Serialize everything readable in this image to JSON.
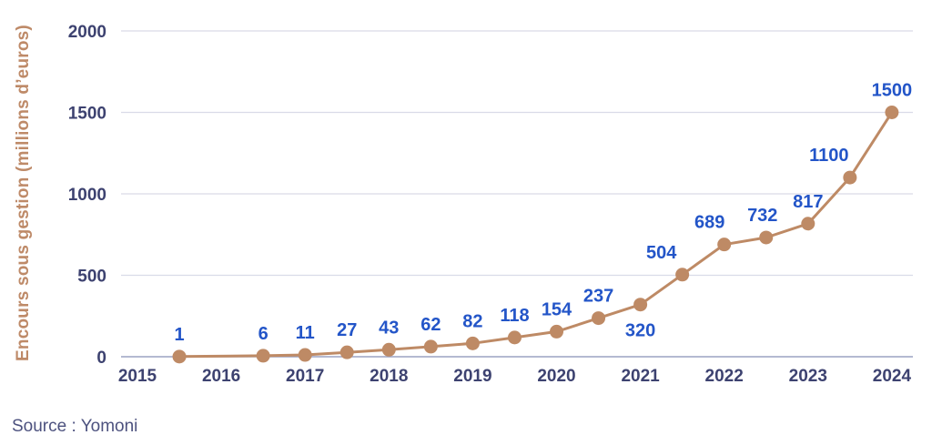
{
  "chart_data": {
    "type": "line",
    "title": "",
    "xlabel": "",
    "ylabel": "Encours sous gestion (millions d’euros)",
    "source": "Source : Yomoni",
    "x_tick_years": [
      2015,
      2016,
      2017,
      2018,
      2019,
      2020,
      2021,
      2022,
      2023,
      2024
    ],
    "x_tick_labels": [
      "2015",
      "2016",
      "2017",
      "2018",
      "2019",
      "2020",
      "2021",
      "2022",
      "2023",
      "2024"
    ],
    "y_ticks": [
      0,
      500,
      1000,
      1500,
      2000
    ],
    "ylim": [
      0,
      2000
    ],
    "xlim_years": [
      2014.8,
      2024.25
    ],
    "grid": "horizontal",
    "legend": "none",
    "series": [
      {
        "name": "Encours sous gestion",
        "points": [
          {
            "x": 2015.5,
            "y": 1
          },
          {
            "x": 2016.5,
            "y": 6
          },
          {
            "x": 2017.0,
            "y": 11
          },
          {
            "x": 2017.5,
            "y": 27
          },
          {
            "x": 2018.0,
            "y": 43
          },
          {
            "x": 2018.5,
            "y": 62
          },
          {
            "x": 2019.0,
            "y": 82
          },
          {
            "x": 2019.5,
            "y": 118
          },
          {
            "x": 2020.0,
            "y": 154
          },
          {
            "x": 2020.5,
            "y": 237
          },
          {
            "x": 2021.0,
            "y": 320,
            "label_position": "below"
          },
          {
            "x": 2021.5,
            "y": 504,
            "label_dx": -23
          },
          {
            "x": 2022.0,
            "y": 689,
            "label_dx": -16
          },
          {
            "x": 2022.5,
            "y": 732,
            "label_dx": -4
          },
          {
            "x": 2023.0,
            "y": 817
          },
          {
            "x": 2023.5,
            "y": 1100,
            "label_dx": -23
          },
          {
            "x": 2024.0,
            "y": 1500
          }
        ]
      }
    ],
    "colors": {
      "line": "#BE8A65",
      "marker": "#BE8A65",
      "data_label": "#2355C8",
      "tick_label": "#3D4270",
      "gridline": "#D9DBE8",
      "axis_line": "#9BA2C2",
      "ylabel": "#BE8A68",
      "source": "#4D527F"
    }
  }
}
